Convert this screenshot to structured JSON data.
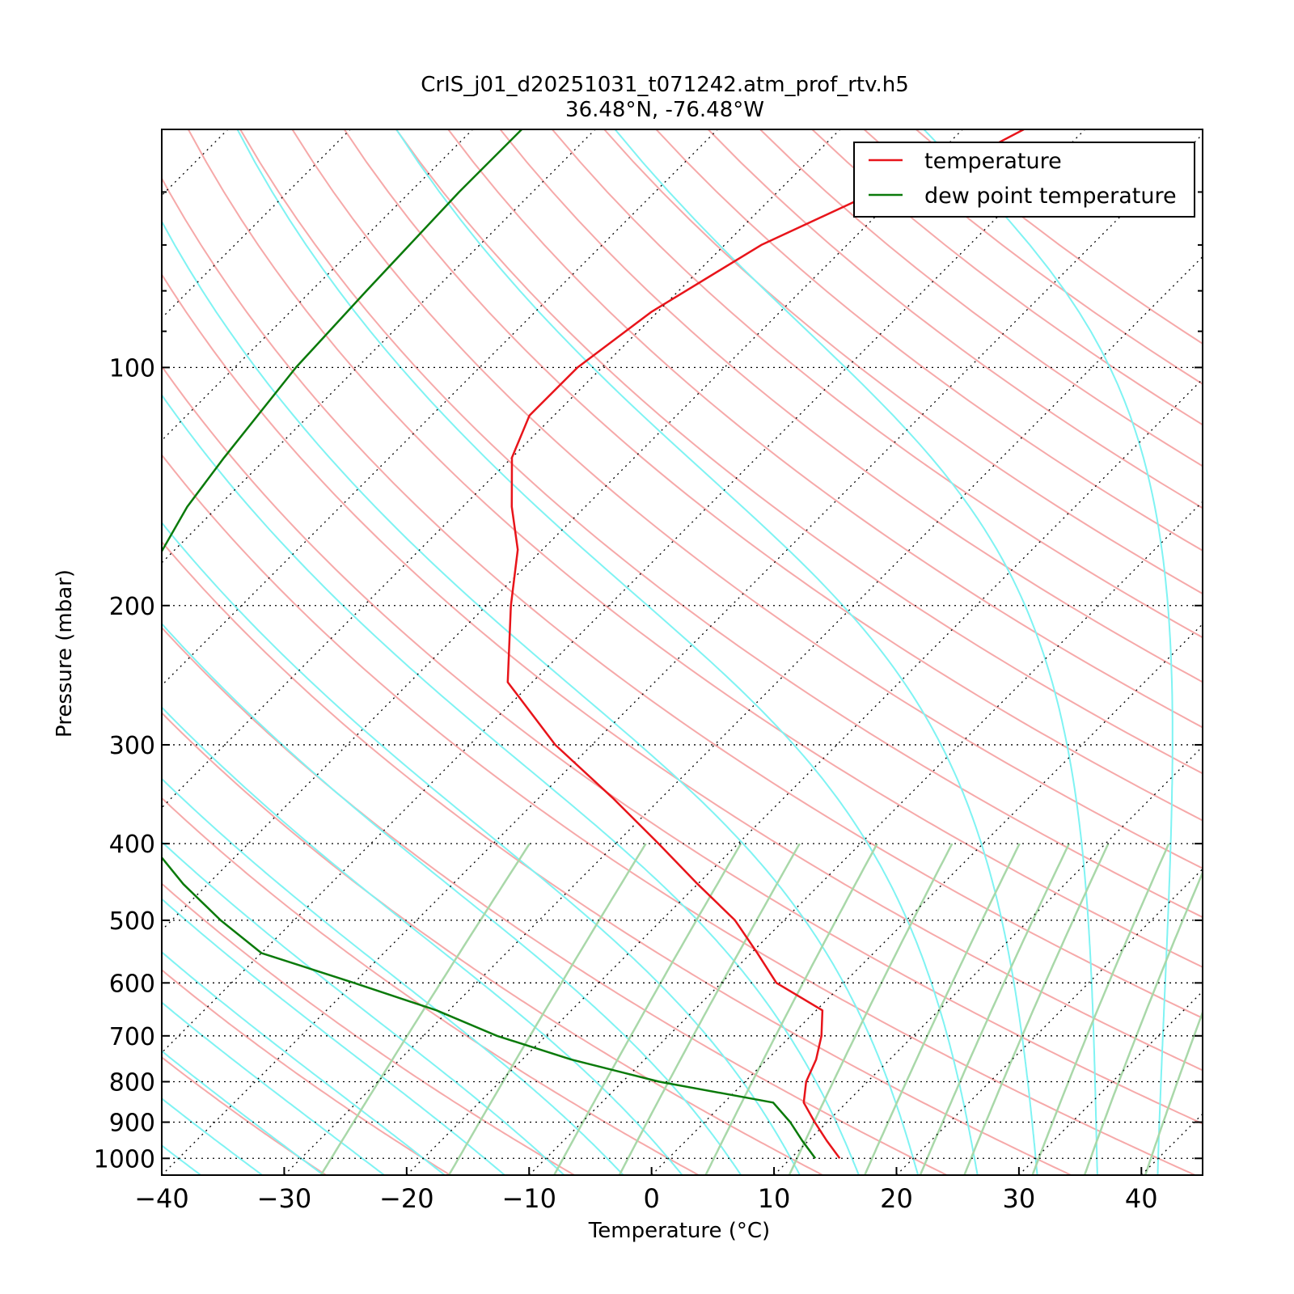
{
  "chart_data": {
    "type": "line",
    "title_line1": "CrIS_j01_d20251031_t071242.atm_prof_rtv.h5",
    "title_line2": "36.48°N, -76.48°W",
    "xlabel": "Temperature (°C)",
    "ylabel": "Pressure (mbar)",
    "xlim": [
      -40,
      45
    ],
    "ylim": [
      1050,
      50
    ],
    "y_scale": "log",
    "skew": "skew-T (isotherms slanted 45°)",
    "x_ticks": [
      -40,
      -30,
      -20,
      -10,
      0,
      10,
      20,
      30,
      40
    ],
    "x_tick_labels": [
      "−40",
      "−30",
      "−20",
      "−10",
      "0",
      "10",
      "20",
      "30",
      "40"
    ],
    "y_ticks": [
      100,
      200,
      300,
      400,
      500,
      600,
      700,
      800,
      900,
      1000
    ],
    "y_tick_labels": [
      "100",
      "200",
      "300",
      "400",
      "500",
      "600",
      "700",
      "800",
      "900",
      "1000"
    ],
    "grid": "dotted horizontal isobars and skewed isotherms",
    "background_lines": {
      "dry_adiabats": "pink",
      "moist_adiabats": "cyan",
      "mixing_ratio": "light green"
    },
    "legend": {
      "placement": "top-right",
      "entries": [
        "temperature",
        "dew point temperature"
      ]
    },
    "series": [
      {
        "name": "temperature",
        "color": "#e8141a",
        "points": [
          {
            "p": 1000,
            "t": 14.0
          },
          {
            "p": 950,
            "t": 11.5
          },
          {
            "p": 900,
            "t": 9.0
          },
          {
            "p": 850,
            "t": 6.5
          },
          {
            "p": 800,
            "t": 5.0
          },
          {
            "p": 750,
            "t": 4.0
          },
          {
            "p": 700,
            "t": 2.5
          },
          {
            "p": 650,
            "t": 0.5
          },
          {
            "p": 600,
            "t": -5.5
          },
          {
            "p": 550,
            "t": -9.5
          },
          {
            "p": 500,
            "t": -14.0
          },
          {
            "p": 450,
            "t": -20.0
          },
          {
            "p": 400,
            "t": -26.5
          },
          {
            "p": 350,
            "t": -34.0
          },
          {
            "p": 300,
            "t": -43.0
          },
          {
            "p": 250,
            "t": -52.0
          },
          {
            "p": 200,
            "t": -58.0
          },
          {
            "p": 170,
            "t": -62.0
          },
          {
            "p": 150,
            "t": -66.0
          },
          {
            "p": 130,
            "t": -70.0
          },
          {
            "p": 115,
            "t": -72.0
          },
          {
            "p": 100,
            "t": -72.0
          },
          {
            "p": 85,
            "t": -70.5
          },
          {
            "p": 70,
            "t": -67.0
          },
          {
            "p": 60,
            "t": -62.0
          },
          {
            "p": 52,
            "t": -56.0
          },
          {
            "p": 50,
            "t": -55.0
          }
        ]
      },
      {
        "name": "dew point temperature",
        "color": "#0a7a0a",
        "points": [
          {
            "p": 1000,
            "t": 12.0
          },
          {
            "p": 950,
            "t": 9.5
          },
          {
            "p": 900,
            "t": 7.0
          },
          {
            "p": 850,
            "t": 4.0
          },
          {
            "p": 800,
            "t": -7.0
          },
          {
            "p": 750,
            "t": -16.0
          },
          {
            "p": 700,
            "t": -24.0
          },
          {
            "p": 650,
            "t": -31.0
          },
          {
            "p": 600,
            "t": -40.0
          },
          {
            "p": 550,
            "t": -50.0
          },
          {
            "p": 500,
            "t": -56.0
          },
          {
            "p": 450,
            "t": -62.0
          },
          {
            "p": 400,
            "t": -68.0
          },
          {
            "p": 350,
            "t": -74.0
          },
          {
            "p": 300,
            "t": -80.0
          },
          {
            "p": 250,
            "t": -86.0
          },
          {
            "p": 200,
            "t": -89.0
          },
          {
            "p": 170,
            "t": -91.0
          },
          {
            "p": 150,
            "t": -92.5
          },
          {
            "p": 130,
            "t": -93.5
          },
          {
            "p": 100,
            "t": -95.0
          },
          {
            "p": 80,
            "t": -95.5
          },
          {
            "p": 60,
            "t": -96.0
          },
          {
            "p": 50,
            "t": -96.0
          }
        ]
      }
    ]
  }
}
